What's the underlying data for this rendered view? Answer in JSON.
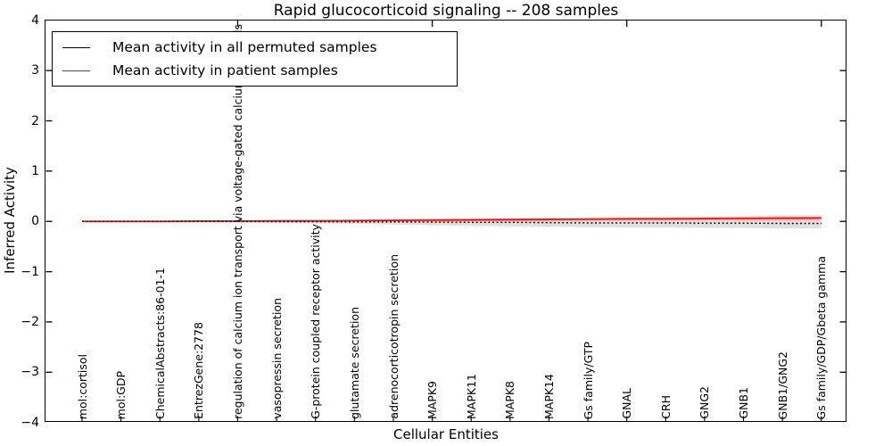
{
  "title": "Rapid glucocorticoid signaling -- 208 samples",
  "axes": {
    "ylabel": "Inferred Activity",
    "xlabel": "Cellular Entities",
    "yticks": [
      "4",
      "3",
      "2",
      "1",
      "0",
      "−1",
      "−2",
      "−3",
      "−4"
    ]
  },
  "legend": {
    "items": [
      {
        "label": "Mean activity in all permuted samples",
        "color": "#000000"
      },
      {
        "label": "Mean activity in patient samples",
        "color": "#ff0000"
      }
    ]
  },
  "chart_data": {
    "type": "line",
    "title": "Rapid glucocorticoid signaling -- 208 samples",
    "xlabel": "Cellular Entities",
    "ylabel": "Inferred Activity",
    "ylim": [
      -4,
      4
    ],
    "grid": false,
    "legend_position": "upper left",
    "categories": [
      "mol:cortisol",
      "mol:GDP",
      "ChemicalAbstracts:86-01-1",
      "EntrezGene:2778",
      "regulation of calcium ion transport via voltage-gated calcium channels",
      "vasopressin secretion",
      "G-protein coupled receptor activity",
      "glutamate secretion",
      "adrenocorticotropin secretion",
      "MAPK9",
      "MAPK11",
      "MAPK8",
      "MAPK14",
      "Gs family/GTP",
      "GNAL",
      "CRH",
      "GNG2",
      "GNB1",
      "GNB1/GNG2",
      "Gs family/GDP/Gbeta gamma"
    ],
    "series": [
      {
        "name": "Mean activity in all permuted samples",
        "color": "#000000",
        "style": "dotted",
        "values": [
          0.0,
          0.0,
          0.0,
          0.0,
          0.0,
          -0.005,
          -0.005,
          -0.01,
          -0.01,
          -0.015,
          -0.02,
          -0.02,
          -0.025,
          -0.03,
          -0.03,
          -0.03,
          -0.035,
          -0.035,
          -0.04,
          -0.04
        ],
        "band_halfwidth": [
          0.005,
          0.008,
          0.01,
          0.015,
          0.02,
          0.025,
          0.03,
          0.04,
          0.05,
          0.06,
          0.07,
          0.075,
          0.08,
          0.085,
          0.09,
          0.09,
          0.095,
          0.095,
          0.1,
          0.1
        ],
        "band_color": "#bbbbbb"
      },
      {
        "name": "Mean activity in patient samples",
        "color": "#ff0000",
        "style": "solid",
        "values": [
          0.0,
          0.0,
          0.0,
          0.005,
          0.005,
          0.01,
          0.01,
          0.015,
          0.02,
          0.025,
          0.03,
          0.035,
          0.04,
          0.045,
          0.05,
          0.05,
          0.055,
          0.06,
          0.065,
          0.07
        ],
        "band_halfwidth": [
          0.003,
          0.005,
          0.008,
          0.01,
          0.012,
          0.015,
          0.018,
          0.02,
          0.025,
          0.03,
          0.03,
          0.035,
          0.035,
          0.04,
          0.04,
          0.04,
          0.045,
          0.045,
          0.05,
          0.05
        ],
        "band_color": "#ff9999"
      }
    ]
  }
}
